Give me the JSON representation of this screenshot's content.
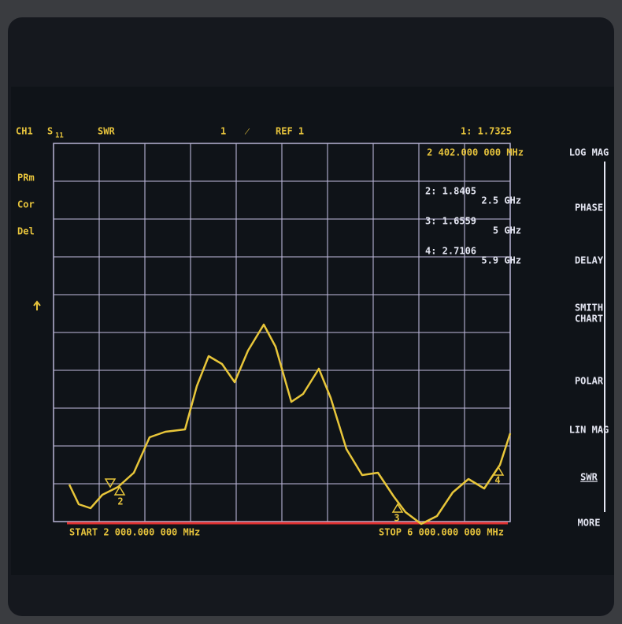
{
  "header": {
    "channel": "CH1",
    "param": "S",
    "param_sub": "11",
    "format": "SWR",
    "scale": "1",
    "ref": "REF 1",
    "active_marker": "1: 1.7325"
  },
  "stimulus_readout": "2 402.000 000 MHz",
  "status_labels": [
    "PRm",
    "Cor",
    "Del"
  ],
  "markers": [
    {
      "value": "2: 1.8405",
      "freq": "2.5 GHz"
    },
    {
      "value": "3: 1.6559",
      "freq": "5 GHz"
    },
    {
      "value": "4: 2.7106",
      "freq": "5.9 GHz"
    }
  ],
  "trace_flags": [
    "2",
    "3",
    "4"
  ],
  "softkeys": [
    "LOG MAG",
    "PHASE",
    "DELAY",
    "SMITH",
    "CHART",
    "POLAR",
    "LIN MAG",
    "SWR",
    "MORE"
  ],
  "footer": {
    "start": "START 2 000.000 000 MHz",
    "stop": "STOP 6 000.000 000 MHz"
  }
}
